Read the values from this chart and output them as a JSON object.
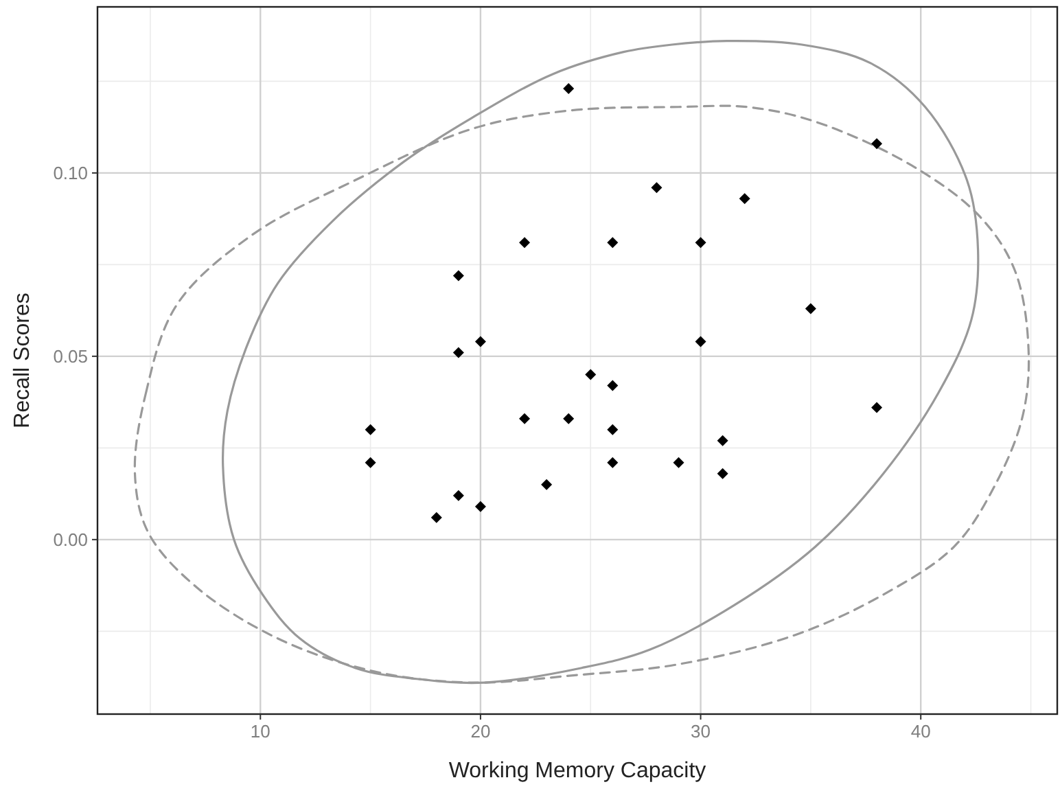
{
  "chart_data": {
    "type": "scatter",
    "xlabel": "Working Memory Capacity",
    "ylabel": "Recall Scores",
    "xlim": [
      2.6,
      46.2
    ],
    "ylim": [
      -0.0476,
      0.1453
    ],
    "xticks": [
      10,
      20,
      30,
      40
    ],
    "yticks": [
      {
        "value": 0,
        "label": "0.00"
      },
      {
        "value": 0.05,
        "label": "0.05"
      },
      {
        "value": 0.1,
        "label": "0.10"
      }
    ],
    "grid": true,
    "series": [
      {
        "color": "#000000",
        "marker": "diamond",
        "x": [
          15,
          15,
          18,
          19,
          19,
          19,
          20,
          20,
          22,
          22,
          23,
          24,
          24,
          25,
          26,
          26,
          26,
          26,
          28,
          29,
          30,
          30,
          31,
          31,
          32,
          35,
          38,
          38
        ],
        "values": [
          0.03,
          0.021,
          0.006,
          0.072,
          0.051,
          0.012,
          0.054,
          0.009,
          0.081,
          0.033,
          0.015,
          0.123,
          0.033,
          0.045,
          0.081,
          0.042,
          0.03,
          0.021,
          0.096,
          0.021,
          0.081,
          0.054,
          0.027,
          0.018,
          0.093,
          0.063,
          0.108,
          0.036
        ]
      }
    ]
  }
}
